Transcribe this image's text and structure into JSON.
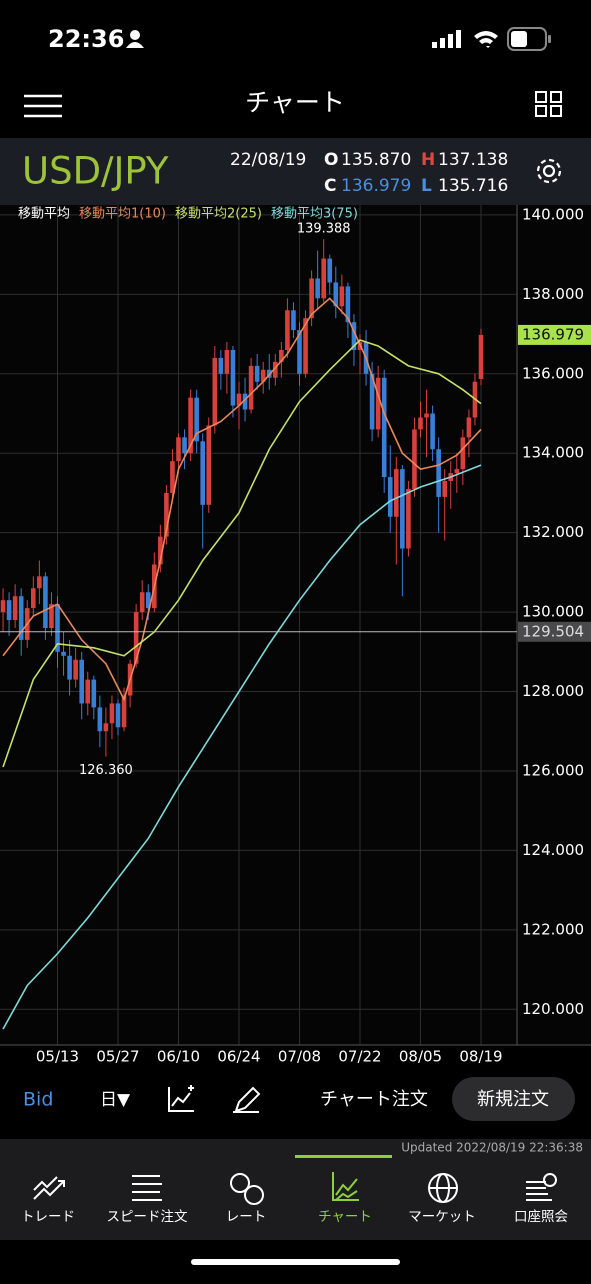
{
  "status_bar": {
    "time": "22:36"
  },
  "header": {
    "title": "チャート"
  },
  "quote": {
    "pair": "USD/JPY",
    "date": "22/08/19",
    "open_label": "O",
    "open": "135.870",
    "high_label": "H",
    "high": "137.138",
    "close_label": "C",
    "close": "136.979",
    "low_label": "L",
    "low": "135.716"
  },
  "chart_data": {
    "type": "candlestick",
    "legend_title": "移動平均",
    "categories": [
      null,
      null,
      null,
      null,
      null,
      null,
      null,
      null,
      null,
      "05/13",
      null,
      null,
      null,
      null,
      null,
      null,
      null,
      null,
      null,
      "05/27",
      null,
      null,
      null,
      null,
      null,
      null,
      null,
      null,
      null,
      "06/10",
      null,
      null,
      null,
      null,
      null,
      null,
      null,
      null,
      null,
      "06/24",
      null,
      null,
      null,
      null,
      null,
      null,
      null,
      null,
      null,
      "07/08",
      null,
      null,
      null,
      null,
      null,
      null,
      null,
      null,
      null,
      "07/22",
      null,
      null,
      null,
      null,
      null,
      null,
      null,
      null,
      null,
      "08/05",
      null,
      null,
      null,
      null,
      null,
      null,
      null,
      null,
      null,
      "08/19"
    ],
    "ohlc": [
      [
        130.0,
        130.6,
        129.5,
        130.3
      ],
      [
        130.3,
        130.5,
        129.4,
        129.8
      ],
      [
        129.8,
        130.7,
        129.6,
        130.4
      ],
      [
        130.4,
        130.6,
        128.9,
        129.3
      ],
      [
        129.3,
        130.3,
        129.1,
        130.1
      ],
      [
        130.1,
        130.9,
        129.9,
        130.6
      ],
      [
        130.6,
        131.3,
        130.2,
        130.9
      ],
      [
        130.9,
        131.0,
        129.3,
        129.6
      ],
      [
        129.6,
        130.5,
        129.4,
        130.2
      ],
      [
        130.2,
        130.4,
        128.6,
        129.0
      ],
      [
        129.0,
        129.5,
        128.4,
        128.9
      ],
      [
        128.9,
        129.3,
        127.9,
        128.3
      ],
      [
        128.3,
        129.1,
        128.1,
        128.8
      ],
      [
        128.8,
        129.0,
        127.3,
        127.7
      ],
      [
        127.7,
        128.5,
        127.4,
        128.3
      ],
      [
        128.3,
        128.4,
        127.3,
        127.6
      ],
      [
        127.6,
        127.9,
        126.6,
        127.0
      ],
      [
        127.0,
        127.6,
        126.36,
        127.2
      ],
      [
        127.2,
        127.9,
        126.8,
        127.7
      ],
      [
        127.7,
        127.8,
        126.9,
        127.1
      ],
      [
        127.1,
        128.1,
        127.0,
        127.9
      ],
      [
        127.9,
        128.8,
        127.6,
        128.7
      ],
      [
        128.7,
        130.2,
        128.6,
        130.0
      ],
      [
        130.0,
        130.8,
        129.8,
        130.5
      ],
      [
        130.5,
        130.7,
        129.8,
        130.1
      ],
      [
        130.1,
        131.5,
        130.0,
        131.2
      ],
      [
        131.2,
        132.2,
        131.0,
        131.9
      ],
      [
        131.9,
        133.2,
        131.7,
        133.0
      ],
      [
        133.0,
        134.1,
        132.8,
        133.8
      ],
      [
        133.8,
        134.5,
        133.5,
        134.4
      ],
      [
        134.4,
        134.6,
        133.6,
        134.0
      ],
      [
        134.0,
        135.6,
        133.8,
        135.4
      ],
      [
        135.4,
        135.6,
        134.0,
        134.3
      ],
      [
        134.3,
        134.5,
        131.6,
        132.7
      ],
      [
        132.7,
        134.9,
        132.5,
        134.7
      ],
      [
        134.7,
        136.7,
        134.5,
        136.4
      ],
      [
        136.4,
        136.6,
        135.6,
        136.0
      ],
      [
        136.0,
        136.8,
        135.5,
        136.6
      ],
      [
        136.6,
        136.7,
        134.9,
        135.2
      ],
      [
        135.2,
        135.8,
        134.6,
        135.5
      ],
      [
        135.5,
        135.9,
        134.8,
        135.1
      ],
      [
        135.1,
        136.4,
        135.0,
        136.2
      ],
      [
        136.2,
        136.5,
        135.6,
        135.8
      ],
      [
        135.8,
        136.3,
        135.5,
        136.1
      ],
      [
        136.1,
        136.5,
        135.6,
        135.9
      ],
      [
        135.9,
        136.5,
        135.7,
        136.3
      ],
      [
        136.3,
        136.8,
        135.9,
        136.6
      ],
      [
        136.6,
        137.9,
        136.4,
        137.6
      ],
      [
        137.6,
        137.8,
        136.9,
        137.1
      ],
      [
        137.1,
        137.3,
        135.7,
        136.0
      ],
      [
        136.0,
        137.6,
        135.9,
        137.4
      ],
      [
        137.4,
        138.6,
        137.2,
        138.4
      ],
      [
        138.4,
        139.1,
        137.6,
        137.9
      ],
      [
        137.9,
        139.388,
        137.8,
        138.9
      ],
      [
        138.9,
        139.0,
        138.0,
        138.3
      ],
      [
        138.3,
        138.7,
        137.4,
        137.7
      ],
      [
        137.7,
        138.5,
        137.5,
        138.2
      ],
      [
        138.2,
        138.3,
        136.9,
        137.3
      ],
      [
        137.3,
        137.5,
        136.2,
        136.6
      ],
      [
        136.6,
        137.0,
        136.0,
        136.8
      ],
      [
        136.8,
        137.1,
        135.7,
        136.0
      ],
      [
        136.0,
        136.3,
        134.3,
        134.6
      ],
      [
        134.6,
        136.2,
        134.4,
        135.9
      ],
      [
        135.9,
        136.1,
        133.0,
        133.4
      ],
      [
        133.4,
        134.2,
        132.0,
        132.4
      ],
      [
        132.4,
        133.9,
        131.2,
        133.6
      ],
      [
        133.6,
        133.7,
        130.4,
        131.6
      ],
      [
        131.6,
        133.3,
        131.4,
        133.1
      ],
      [
        133.1,
        134.9,
        132.9,
        134.6
      ],
      [
        134.6,
        135.3,
        134.4,
        134.9
      ],
      [
        134.9,
        135.6,
        133.9,
        135.0
      ],
      [
        135.0,
        135.2,
        133.8,
        134.1
      ],
      [
        134.1,
        134.4,
        132.0,
        132.9
      ],
      [
        132.9,
        133.6,
        131.8,
        133.3
      ],
      [
        133.3,
        133.8,
        132.6,
        133.5
      ],
      [
        133.5,
        134.0,
        133.0,
        133.6
      ],
      [
        133.6,
        134.6,
        133.2,
        134.4
      ],
      [
        134.4,
        135.1,
        133.9,
        134.9
      ],
      [
        134.9,
        136.0,
        134.7,
        135.8
      ],
      [
        135.87,
        137.138,
        135.716,
        136.979
      ]
    ],
    "up_color": "#d8403c",
    "down_color": "#3a7fd6",
    "series": [
      {
        "name": "移動平均1(10)",
        "color": "#e8875c",
        "x": [
          0,
          5,
          9,
          13,
          17,
          20,
          23,
          26,
          29,
          32,
          36,
          39,
          43,
          47,
          51,
          54,
          57,
          60,
          63,
          66,
          69,
          72,
          75,
          79
        ],
        "values": [
          128.9,
          129.9,
          130.2,
          129.3,
          128.7,
          127.8,
          129.3,
          131.3,
          133.6,
          134.5,
          134.8,
          135.2,
          135.8,
          136.5,
          137.5,
          137.9,
          137.4,
          136.4,
          135.0,
          134.0,
          133.6,
          133.7,
          133.95,
          134.6
        ]
      },
      {
        "name": "移動平均2(25)",
        "color": "#c4e06a",
        "x": [
          0,
          5,
          9,
          15,
          20,
          25,
          29,
          33,
          39,
          44,
          49,
          54,
          59,
          62,
          67,
          72,
          76,
          79
        ],
        "values": [
          126.1,
          128.3,
          129.2,
          129.1,
          128.9,
          129.5,
          130.3,
          131.3,
          132.5,
          134.1,
          135.3,
          136.1,
          136.85,
          136.7,
          136.2,
          136.0,
          135.6,
          135.25
        ]
      },
      {
        "name": "移動平均3(75)",
        "color": "#80dada",
        "x": [
          0,
          4,
          9,
          14,
          19,
          24,
          29,
          34,
          39,
          44,
          49,
          54,
          59,
          64,
          69,
          74,
          79
        ],
        "values": [
          119.5,
          120.6,
          121.4,
          122.3,
          123.3,
          124.3,
          125.6,
          126.8,
          128.0,
          129.2,
          130.3,
          131.3,
          132.2,
          132.8,
          133.15,
          133.4,
          133.7
        ]
      }
    ],
    "ylim": [
      119.1,
      140.25
    ],
    "yticks": [
      {
        "value": 120,
        "label": "120.000"
      },
      {
        "value": 122,
        "label": "122.000"
      },
      {
        "value": 124,
        "label": "124.000"
      },
      {
        "value": 126,
        "label": "126.000"
      },
      {
        "value": 128,
        "label": "128.000"
      },
      {
        "value": 130,
        "label": "130.000"
      },
      {
        "value": 132,
        "label": "132.000"
      },
      {
        "value": 134,
        "label": "134.000"
      },
      {
        "value": 136,
        "label": "136.000"
      },
      {
        "value": 138,
        "label": "138.000"
      },
      {
        "value": 140,
        "label": "140.000"
      }
    ],
    "grid": true,
    "price_markers": [
      {
        "value": 136.979,
        "color": "#a9e34b"
      },
      {
        "value": 129.504,
        "color": "#4a4a4c"
      }
    ],
    "high_label": 139.388,
    "low_label": {
      "value": 126.36,
      "label": "126.360"
    }
  },
  "toolbar": {
    "side": "Bid",
    "period": "日▼",
    "chart_order": "チャート注文",
    "new_order": "新規注文"
  },
  "updated": "Updated  2022/08/19 22:36:38",
  "tabs": [
    "トレード",
    "スピード注文",
    "レート",
    "チャート",
    "マーケット",
    "口座照会"
  ]
}
